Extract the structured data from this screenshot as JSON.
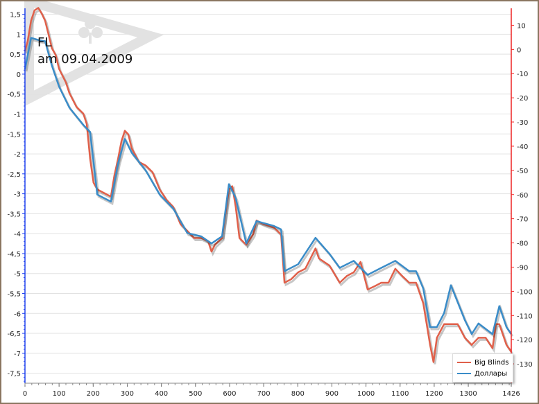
{
  "annotation": {
    "line1": "FL",
    "line2": "am 09.04.2009"
  },
  "chart_data": {
    "type": "line",
    "title": "",
    "grid": true,
    "legend_position": "bottom-right",
    "x_axis": {
      "min": 0,
      "max": 1426,
      "ticks": [
        0,
        100,
        200,
        300,
        400,
        500,
        600,
        700,
        800,
        900,
        1000,
        1100,
        1200,
        1300,
        1426
      ]
    },
    "y_left": {
      "min": -7.75,
      "max": 1.65,
      "ticks": [
        1.5,
        1,
        0.5,
        0,
        -0.5,
        -1,
        -1.5,
        -2,
        -2.5,
        -3,
        -3.5,
        -4,
        -4.5,
        -5,
        -5.5,
        -6,
        -6.5,
        -7,
        -7.5
      ],
      "color": "#2244ee"
    },
    "y_right": {
      "min": -138,
      "max": 17,
      "ticks": [
        10,
        0,
        -10,
        -20,
        -30,
        -40,
        -50,
        -60,
        -70,
        -80,
        -90,
        -100,
        -110,
        -120,
        -130
      ],
      "color": "#ee2222"
    },
    "series": [
      {
        "name": "Big Blinds",
        "axis": "left",
        "color": "#e0604a",
        "x": [
          0,
          8,
          18,
          28,
          39,
          49,
          59,
          69,
          79,
          90,
          100,
          120,
          130,
          151,
          171,
          181,
          191,
          201,
          212,
          232,
          252,
          262,
          273,
          283,
          293,
          303,
          313,
          334,
          354,
          374,
          395,
          415,
          435,
          456,
          476,
          496,
          517,
          537,
          547,
          557,
          578,
          598,
          608,
          618,
          629,
          649,
          669,
          679,
          700,
          730,
          740,
          751,
          761,
          781,
          801,
          822,
          852,
          862,
          893,
          923,
          944,
          964,
          984,
          1005,
          1025,
          1045,
          1066,
          1086,
          1106,
          1127,
          1147,
          1168,
          1188,
          1198,
          1208,
          1229,
          1249,
          1269,
          1290,
          1310,
          1330,
          1351,
          1371,
          1381,
          1391,
          1412,
          1426
        ],
        "y": [
          0.57,
          0.83,
          1.34,
          1.6,
          1.66,
          1.52,
          1.34,
          1.0,
          0.65,
          0.48,
          0.13,
          -0.21,
          -0.47,
          -0.82,
          -0.99,
          -1.25,
          -2.12,
          -2.72,
          -2.89,
          -2.98,
          -3.07,
          -2.55,
          -2.12,
          -1.68,
          -1.42,
          -1.51,
          -1.86,
          -2.2,
          -2.29,
          -2.46,
          -2.89,
          -3.15,
          -3.33,
          -3.76,
          -3.93,
          -4.11,
          -4.11,
          -4.19,
          -4.45,
          -4.28,
          -4.11,
          -2.89,
          -2.81,
          -3.33,
          -4.11,
          -4.28,
          -4.02,
          -3.67,
          -3.76,
          -3.85,
          -3.93,
          -4.02,
          -5.23,
          -5.14,
          -4.97,
          -4.88,
          -4.37,
          -4.62,
          -4.8,
          -5.23,
          -5.06,
          -4.97,
          -4.71,
          -5.4,
          -5.32,
          -5.23,
          -5.23,
          -4.88,
          -5.06,
          -5.23,
          -5.23,
          -5.75,
          -6.79,
          -7.22,
          -6.61,
          -6.27,
          -6.27,
          -6.27,
          -6.61,
          -6.79,
          -6.61,
          -6.61,
          -6.87,
          -6.27,
          -6.27,
          -6.79,
          -6.96
        ]
      },
      {
        "name": "Доллары",
        "axis": "right",
        "color": "#3a8cc8",
        "x": [
          0,
          18,
          39,
          59,
          79,
          100,
          130,
          171,
          191,
          212,
          252,
          273,
          293,
          313,
          354,
          395,
          435,
          476,
          517,
          547,
          578,
          598,
          618,
          649,
          679,
          730,
          751,
          761,
          801,
          852,
          893,
          923,
          964,
          1005,
          1045,
          1086,
          1127,
          1147,
          1168,
          1188,
          1208,
          1229,
          1249,
          1290,
          1310,
          1330,
          1371,
          1391,
          1412,
          1426
        ],
        "y": [
          -8.2,
          4.8,
          3.9,
          3.4,
          -6.7,
          -15.4,
          -24,
          -31.2,
          -34.1,
          -60,
          -62.9,
          -47.1,
          -37,
          -42.7,
          -50,
          -60,
          -65.8,
          -75.9,
          -77.3,
          -80.2,
          -77.3,
          -55.7,
          -61.5,
          -80.2,
          -71,
          -73,
          -74.4,
          -91.7,
          -88.8,
          -77.9,
          -84.5,
          -90.3,
          -87.4,
          -93.2,
          -90.3,
          -87.4,
          -91.7,
          -91.7,
          -98.9,
          -114.8,
          -114.8,
          -109,
          -97.5,
          -111.9,
          -117.7,
          -113.3,
          -117.7,
          -106.1,
          -114.8,
          -117.7
        ]
      }
    ]
  }
}
